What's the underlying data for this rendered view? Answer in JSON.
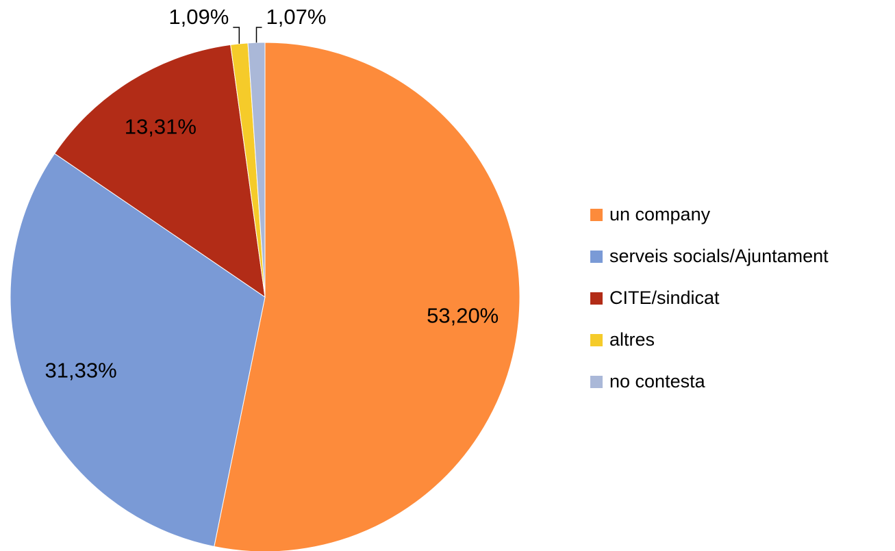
{
  "chart_data": {
    "type": "pie",
    "categories": [
      "un company",
      "serveis socials/Ajuntament",
      "CITE/sindicat",
      "altres",
      "no contesta"
    ],
    "values": [
      53.2,
      31.33,
      13.31,
      1.09,
      1.07
    ],
    "value_labels": [
      "53,20%",
      "31,33%",
      "13,31%",
      "1,09%",
      "1,07%"
    ],
    "colors": [
      "#fd8b3b",
      "#7a9ad6",
      "#b22c17",
      "#f5cb2a",
      "#aab8d8"
    ],
    "legend": "right"
  }
}
